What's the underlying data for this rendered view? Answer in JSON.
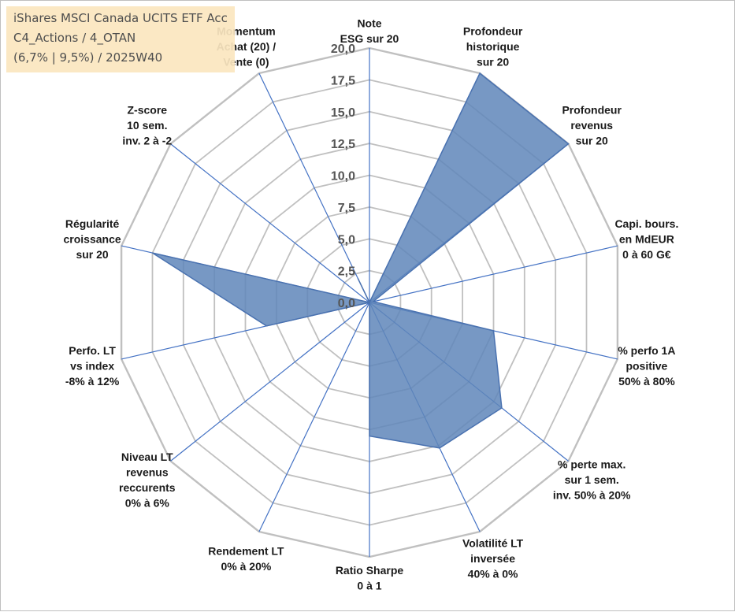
{
  "info": {
    "line1": "iShares MSCI Canada UCITS ETF Acc",
    "line2": "C4_Actions / 4_OTAN",
    "line3": "(6,7% | 9,5%) / 2025W40"
  },
  "colors": {
    "grid": "#c0c0c0",
    "axis": "#4472c4",
    "fill": "#5f86ba",
    "stroke": "#4a72b0",
    "infobox": "#fbe7c0"
  },
  "chart_data": {
    "type": "radar",
    "rmax": 20,
    "ticks": [
      "0,0",
      "2,5",
      "5,0",
      "7,5",
      "10,0",
      "12,5",
      "15,0",
      "17,5",
      "20,0"
    ],
    "axes": [
      [
        "Note",
        "ESG sur 20"
      ],
      [
        "Profondeur",
        "historique",
        "sur 20"
      ],
      [
        "Profondeur",
        "revenus",
        "sur 20"
      ],
      [
        "Capi. bours.",
        "en MdEUR",
        "0 à 60 G€"
      ],
      [
        "% perfo 1A",
        "positive",
        "50% à 80%"
      ],
      [
        "% perte max.",
        "sur 1 sem.",
        "inv. 50% à 20%"
      ],
      [
        "Volatilité LT",
        "inversée",
        "40% à 0%"
      ],
      [
        "Ratio Sharpe",
        "0 à 1"
      ],
      [
        "Rendement LT",
        "0% à 20%"
      ],
      [
        "Niveau LT",
        "revenus",
        "reccurents",
        "0% à 6%"
      ],
      [
        "Perfo. LT",
        "vs index",
        "-8% à 12%"
      ],
      [
        "Régularité",
        "croissance",
        "sur 20"
      ],
      [
        "Z-score",
        "10 sem.",
        "inv. 2 à -2"
      ],
      [
        "Momentum",
        "Achat (20) /",
        "Vente (0)"
      ]
    ],
    "values": [
      0,
      20,
      20,
      0.3,
      10,
      13.3,
      12.7,
      10.5,
      0,
      0,
      8.3,
      17.5,
      0,
      2.1
    ]
  }
}
